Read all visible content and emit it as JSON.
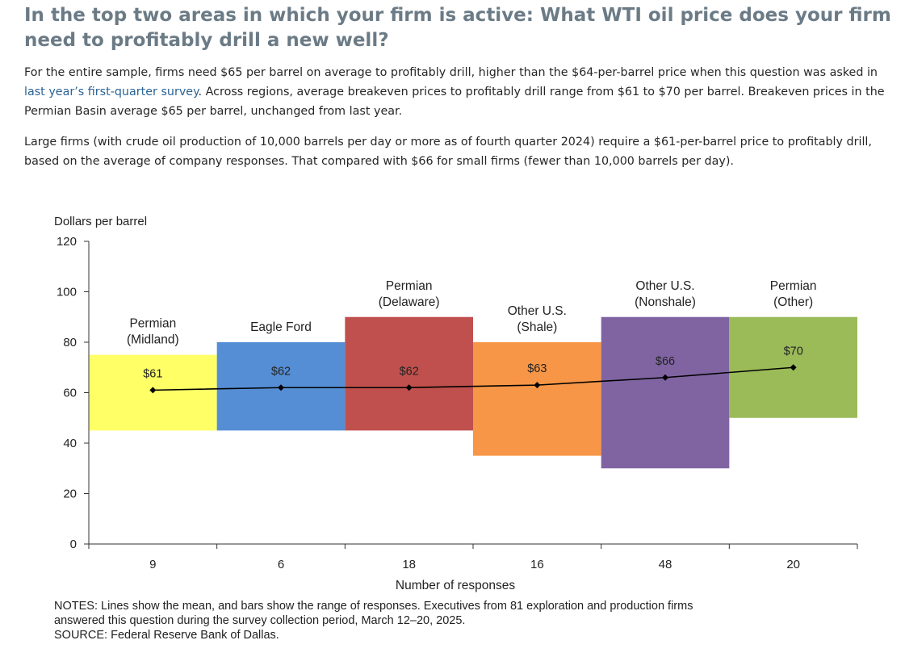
{
  "page": {
    "title": "In the top two areas in which your firm is active: What WTI oil price does your firm need to profitably drill a new well?",
    "p1_before_link": "For the entire sample, firms need $65 per barrel on average to profitably drill, higher than the $64-per-barrel price when this question was asked in ",
    "p1_link": "last year’s first-quarter survey",
    "p1_after_link": ". Across regions, average breakeven prices to profitably drill range from $61 to $70 per barrel. Breakeven prices in the Permian Basin average $65 per barrel, unchanged from last year.",
    "p2": "Large firms (with crude oil production of 10,000 barrels per day or more as of fourth quarter 2024) require a $61-per-barrel price to profitably drill, based on the average of company responses. That compared with $66 for small firms (fewer than 10,000 barrels per day).",
    "notes_line1": "NOTES: Lines show the mean, and bars show the range of responses. Executives from 81 exploration and production firms",
    "notes_line2": "answered this question during the survey collection period, March 12–20, 2025.",
    "source": "SOURCE: Federal Reserve Bank of Dallas."
  },
  "chart_data": {
    "type": "bar",
    "subtype": "floating range bars with mean line",
    "ylabel": "Dollars per barrel",
    "xlabel": "Number of responses",
    "ylim": [
      0,
      120
    ],
    "yticks": [
      0,
      20,
      40,
      60,
      80,
      100,
      120
    ],
    "grid": false,
    "categories": [
      [
        "Permian",
        "(Midland)"
      ],
      [
        "Eagle Ford"
      ],
      [
        "Permian",
        "(Delaware)"
      ],
      [
        "Other U.S.",
        "(Shale)"
      ],
      [
        "Other U.S.",
        "(Nonshale)"
      ],
      [
        "Permian",
        "(Other)"
      ]
    ],
    "responses": [
      "9",
      "6",
      "18",
      "16",
      "48",
      "20"
    ],
    "series": [
      {
        "name": "Range of responses",
        "low": [
          45,
          45,
          45,
          35,
          30,
          50
        ],
        "high": [
          75,
          80,
          90,
          80,
          90,
          90
        ]
      },
      {
        "name": "Mean",
        "values": [
          61,
          62,
          62,
          63,
          66,
          70
        ]
      }
    ],
    "mean_labels": [
      "$61",
      "$62",
      "$62",
      "$63",
      "$66",
      "$70"
    ],
    "colors": [
      "#ffff66",
      "#558ed5",
      "#c0504d",
      "#f79646",
      "#8064a2",
      "#9bbb59"
    ],
    "line_color": "#000000"
  }
}
